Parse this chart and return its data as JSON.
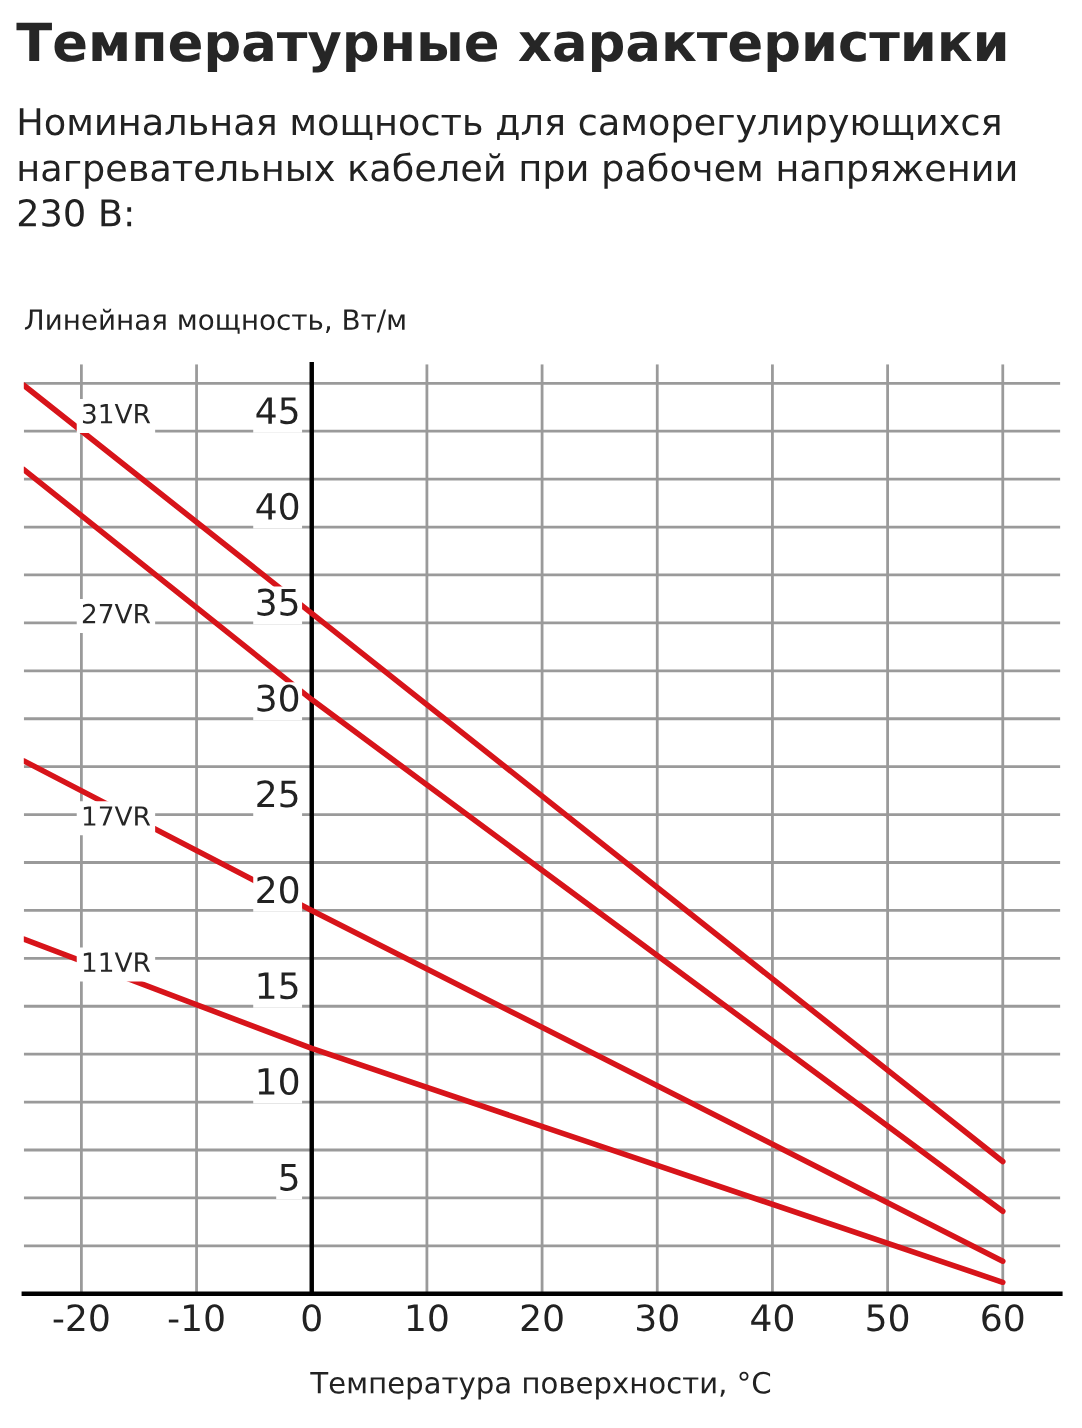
{
  "chart_data": {
    "type": "line",
    "title": "Температурные характеристики",
    "subtitle": "Номинальная мощность для саморегулирующихся\nнагревательных кабелей при рабочем напряжении\n230 В:",
    "ylabel": "Линейная мощность, Вт/м",
    "xlabel": "Температура поверхности, °C",
    "x": [
      -25,
      0,
      60
    ],
    "series": [
      {
        "name": "31VR",
        "color": "#d7141a",
        "values": [
          47.4,
          35.5,
          6.9
        ]
      },
      {
        "name": "27VR",
        "color": "#d7141a",
        "values": [
          43,
          31,
          4.3
        ]
      },
      {
        "name": "17VR",
        "color": "#d7141a",
        "values": [
          27.8,
          20,
          1.7
        ]
      },
      {
        "name": "11VR",
        "color": "#d7141a",
        "values": [
          18.5,
          12.8,
          0.6
        ]
      }
    ],
    "xlim": [
      -25,
      65
    ],
    "ylim": [
      0,
      48.5
    ],
    "xticks": [
      -20,
      -10,
      0,
      10,
      20,
      30,
      40,
      50,
      60
    ],
    "yticks": [
      {
        "value": 2.5,
        "label": null
      },
      5,
      {
        "value": 7.5,
        "label": null
      },
      10,
      {
        "value": 12.5,
        "label": null
      },
      15,
      {
        "value": 17.5,
        "label": null
      },
      20,
      {
        "value": 22.5,
        "label": null
      },
      25,
      {
        "value": 27.5,
        "label": null
      },
      30,
      {
        "value": 32.5,
        "label": null
      },
      35,
      {
        "value": 37.5,
        "label": null
      },
      40,
      {
        "value": 42.5,
        "label": null
      },
      45,
      {
        "value": 47.5,
        "label": null
      }
    ],
    "grid": true,
    "legend": false,
    "marker": "none",
    "line_style": "solid"
  }
}
